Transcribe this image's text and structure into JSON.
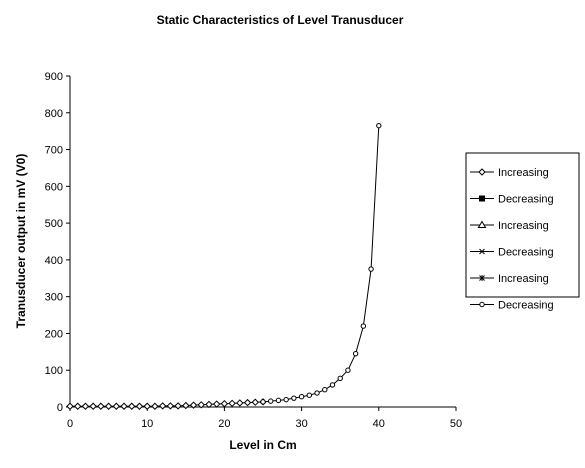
{
  "chart_data": {
    "type": "line",
    "title": "Static Characteristics of Level Tranusducer",
    "xlabel": "Level in Cm",
    "ylabel": "Tranusducer output in mV (V0)",
    "xlim": [
      0,
      50
    ],
    "ylim": [
      0,
      900
    ],
    "x_ticks": [
      "0",
      "10",
      "20",
      "30",
      "40",
      "50"
    ],
    "y_ticks": [
      "0",
      "100",
      "200",
      "300",
      "400",
      "500",
      "600",
      "700",
      "800",
      "900"
    ],
    "grid": false,
    "legend_position": "right",
    "series": [
      {
        "name": "Increasing",
        "marker": "diamond",
        "x": [
          0,
          1,
          2,
          3,
          4,
          5,
          6,
          7,
          8,
          9,
          10,
          11,
          12,
          13,
          14,
          15,
          16,
          17,
          18,
          19,
          20,
          21,
          22,
          23,
          24,
          25
        ],
        "values": [
          2,
          2,
          2,
          2,
          2,
          2,
          2,
          2,
          2,
          2,
          2,
          2,
          3,
          3,
          3,
          4,
          5,
          6,
          7,
          8,
          9,
          10,
          11,
          12,
          13,
          14
        ]
      },
      {
        "name": "Decreasing",
        "marker": "square",
        "x": [],
        "values": []
      },
      {
        "name": "Increasing",
        "marker": "triangle",
        "x": [],
        "values": []
      },
      {
        "name": "Decreasing",
        "marker": "x",
        "x": [],
        "values": []
      },
      {
        "name": "Increasing",
        "marker": "star",
        "x": [],
        "values": []
      },
      {
        "name": "Decreasing",
        "marker": "circle",
        "x": [
          25,
          26,
          27,
          28,
          29,
          30,
          31,
          32,
          33,
          34,
          35,
          36,
          37,
          38,
          39,
          40
        ],
        "values": [
          14,
          16,
          18,
          20,
          24,
          28,
          32,
          38,
          47,
          60,
          78,
          100,
          145,
          220,
          375,
          765
        ]
      }
    ]
  }
}
